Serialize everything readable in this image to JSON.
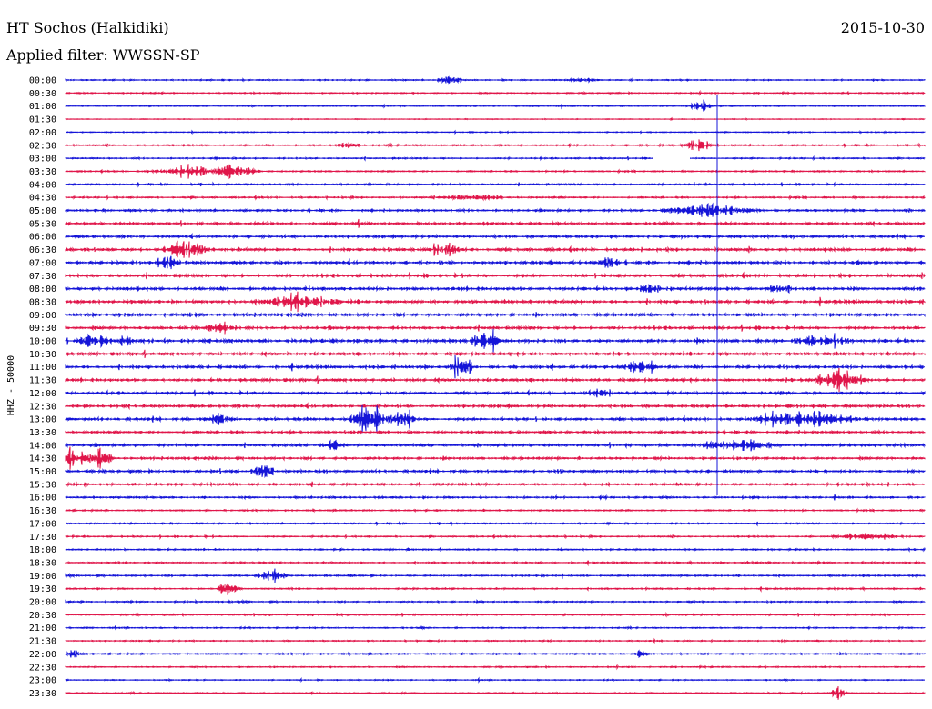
{
  "header": {
    "station": "HT Sochos (Halkidiki)",
    "date": "2015-10-30",
    "filter_line": "Applied filter: WWSSN-SP"
  },
  "chart_data": {
    "type": "line",
    "title": "HT Sochos (Halkidiki)",
    "subtitle": "Applied filter: WWSSN-SP",
    "ylabel": "HHZ - 50000",
    "xlabel": "",
    "colors": [
      "#1515d8",
      "#e0164a"
    ],
    "trace_color_order": [
      "blue",
      "red"
    ],
    "rows": [
      {
        "time": "00:00",
        "events": [
          [
            0.45,
            0.5,
            2
          ],
          [
            0.6,
            0.3,
            2
          ]
        ]
      },
      {
        "time": "00:30",
        "events": []
      },
      {
        "time": "01:00",
        "events": [
          [
            0.74,
            0.7,
            1.5
          ]
        ]
      },
      {
        "time": "01:30",
        "events": []
      },
      {
        "time": "02:00",
        "events": []
      },
      {
        "time": "02:30",
        "events": [
          [
            0.33,
            0.5,
            1.5
          ],
          [
            0.735,
            0.9,
            2
          ]
        ]
      },
      {
        "time": "03:00",
        "events": []
      },
      {
        "time": "03:30",
        "events": [
          [
            0.15,
            0.6,
            6
          ],
          [
            0.2,
            0.7,
            3
          ]
        ]
      },
      {
        "time": "04:00",
        "events": []
      },
      {
        "time": "04:30",
        "events": [
          [
            0.47,
            0.4,
            4
          ]
        ]
      },
      {
        "time": "05:00",
        "events": [
          [
            0.75,
            0.9,
            6
          ]
        ]
      },
      {
        "time": "05:30",
        "events": []
      },
      {
        "time": "06:00",
        "events": []
      },
      {
        "time": "06:30",
        "events": [
          [
            0.14,
            1.3,
            3
          ],
          [
            0.44,
            0.7,
            3
          ]
        ]
      },
      {
        "time": "07:00",
        "events": [
          [
            0.12,
            0.9,
            2
          ],
          [
            0.63,
            0.9,
            1.5
          ]
        ]
      },
      {
        "time": "07:30",
        "events": []
      },
      {
        "time": "08:00",
        "events": [
          [
            0.68,
            0.8,
            1.5
          ],
          [
            0.83,
            0.9,
            1.5
          ]
        ]
      },
      {
        "time": "08:30",
        "events": [
          [
            0.27,
            0.8,
            6
          ]
        ]
      },
      {
        "time": "09:00",
        "events": []
      },
      {
        "time": "09:30",
        "events": [
          [
            0.18,
            0.8,
            2
          ]
        ]
      },
      {
        "time": "10:00",
        "events": [
          [
            0.035,
            1.4,
            2
          ],
          [
            0.07,
            0.8,
            1
          ],
          [
            0.49,
            1.4,
            2
          ],
          [
            0.88,
            0.9,
            4
          ]
        ]
      },
      {
        "time": "10:30",
        "events": []
      },
      {
        "time": "11:00",
        "events": [
          [
            0.46,
            1.5,
            1.5
          ],
          [
            0.67,
            0.9,
            2
          ]
        ]
      },
      {
        "time": "11:30",
        "events": [
          [
            0.9,
            1.1,
            4
          ]
        ]
      },
      {
        "time": "12:00",
        "events": [
          [
            0.62,
            0.6,
            2
          ]
        ]
      },
      {
        "time": "12:30",
        "events": []
      },
      {
        "time": "13:00",
        "events": [
          [
            0.18,
            0.9,
            2
          ],
          [
            0.355,
            1.9,
            3
          ],
          [
            0.395,
            1.7,
            1.5
          ],
          [
            0.86,
            0.9,
            8
          ]
        ]
      },
      {
        "time": "13:30",
        "events": []
      },
      {
        "time": "14:00",
        "events": [
          [
            0.31,
            0.8,
            2
          ],
          [
            0.78,
            0.8,
            5
          ]
        ]
      },
      {
        "time": "14:30",
        "events": [
          [
            0.005,
            1.2,
            3
          ],
          [
            0.04,
            1.3,
            2
          ]
        ]
      },
      {
        "time": "15:00",
        "events": [
          [
            0.23,
            1.1,
            1.5
          ]
        ]
      },
      {
        "time": "15:30",
        "events": []
      },
      {
        "time": "16:00",
        "events": []
      },
      {
        "time": "16:30",
        "events": []
      },
      {
        "time": "17:00",
        "events": []
      },
      {
        "time": "17:30",
        "events": [
          [
            0.93,
            0.5,
            4
          ]
        ]
      },
      {
        "time": "18:00",
        "events": []
      },
      {
        "time": "18:30",
        "events": []
      },
      {
        "time": "19:00",
        "events": [
          [
            0.24,
            1.1,
            2
          ]
        ]
      },
      {
        "time": "19:30",
        "events": [
          [
            0.19,
            0.8,
            1.5
          ]
        ]
      },
      {
        "time": "20:00",
        "events": []
      },
      {
        "time": "20:30",
        "events": []
      },
      {
        "time": "21:00",
        "events": []
      },
      {
        "time": "21:30",
        "events": []
      },
      {
        "time": "22:00",
        "events": [
          [
            0.012,
            0.8,
            1
          ],
          [
            0.67,
            0.6,
            1
          ]
        ]
      },
      {
        "time": "22:30",
        "events": []
      },
      {
        "time": "23:00",
        "events": []
      },
      {
        "time": "23:30",
        "events": [
          [
            0.9,
            1.0,
            1
          ]
        ]
      }
    ],
    "row_noise_levels": [
      0.25,
      0.25,
      0.2,
      0.15,
      0.2,
      0.3,
      0.3,
      0.3,
      0.35,
      0.35,
      0.45,
      0.5,
      0.5,
      0.6,
      0.6,
      0.6,
      0.65,
      0.65,
      0.6,
      0.6,
      0.7,
      0.6,
      0.6,
      0.6,
      0.55,
      0.55,
      0.55,
      0.5,
      0.5,
      0.5,
      0.5,
      0.45,
      0.4,
      0.3,
      0.3,
      0.3,
      0.3,
      0.3,
      0.35,
      0.3,
      0.3,
      0.3,
      0.25,
      0.25,
      0.3,
      0.25,
      0.2,
      0.25
    ]
  }
}
